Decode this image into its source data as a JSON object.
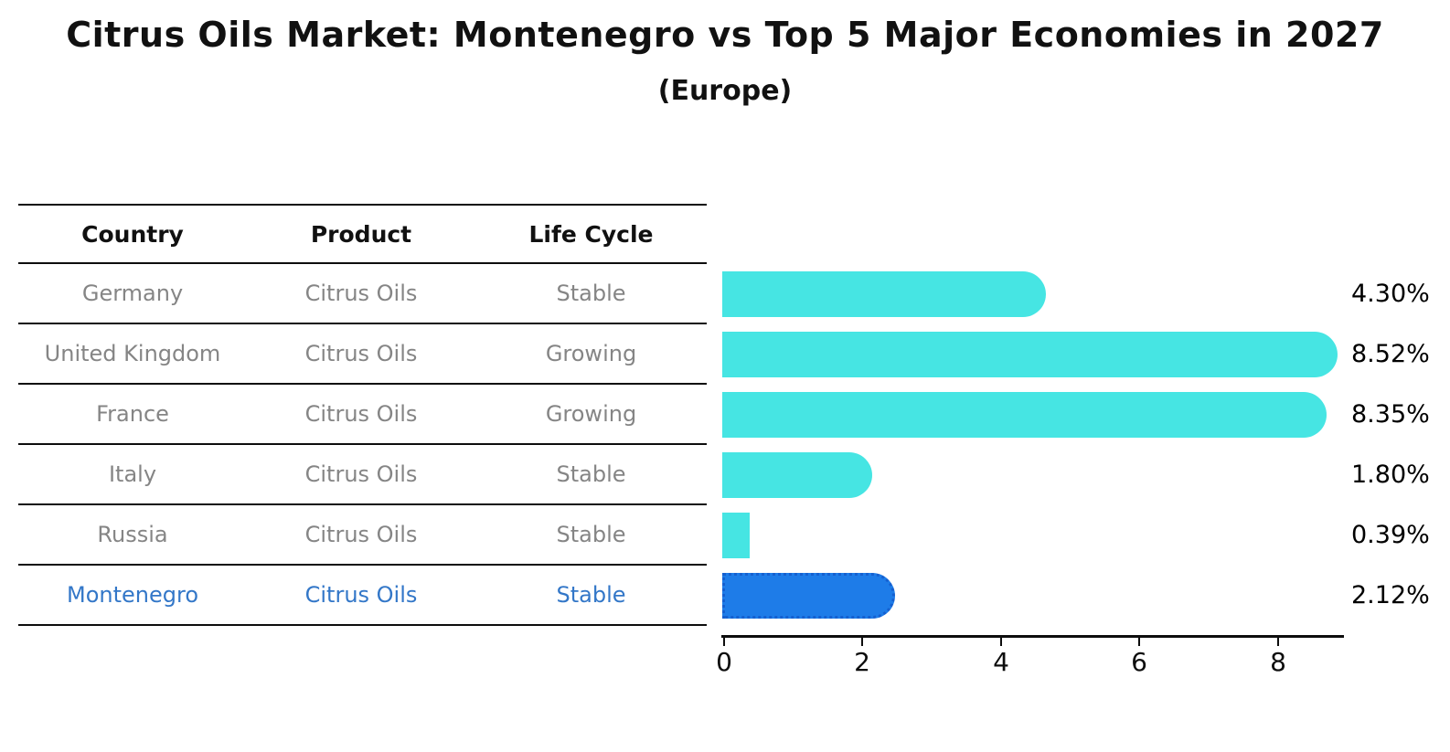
{
  "title": "Citrus Oils Market: Montenegro vs Top 5 Major Economies in 2027",
  "subtitle": "(Europe)",
  "table": {
    "headers": {
      "country": "Country",
      "product": "Product",
      "life_cycle": "Life Cycle"
    },
    "rows": [
      {
        "country": "Germany",
        "product": "Citrus Oils",
        "life_cycle": "Stable"
      },
      {
        "country": "United Kingdom",
        "product": "Citrus Oils",
        "life_cycle": "Growing"
      },
      {
        "country": "France",
        "product": "Citrus Oils",
        "life_cycle": "Growing"
      },
      {
        "country": "Italy",
        "product": "Citrus Oils",
        "life_cycle": "Stable"
      },
      {
        "country": "Russia",
        "product": "Citrus Oils",
        "life_cycle": "Stable"
      },
      {
        "country": "Montenegro",
        "product": "Citrus Oils",
        "life_cycle": "Stable"
      }
    ]
  },
  "chart_data": {
    "type": "bar",
    "orientation": "horizontal",
    "title": "Citrus Oils Market: Montenegro vs Top 5 Major Economies in 2027",
    "subtitle": "(Europe)",
    "categories": [
      "Germany",
      "United Kingdom",
      "France",
      "Italy",
      "Russia",
      "Montenegro"
    ],
    "values": [
      4.3,
      8.52,
      8.35,
      1.8,
      0.39,
      2.12
    ],
    "value_labels": [
      "4.30%",
      "8.52%",
      "8.35%",
      "1.80%",
      "0.39%",
      "2.12%"
    ],
    "x_ticks": [
      0,
      2,
      4,
      6,
      8
    ],
    "xlim": [
      0,
      9
    ],
    "grid": "off",
    "legend": "none",
    "highlight_category": "Montenegro"
  },
  "colors": {
    "bar_default": "#46E5E3",
    "bar_highlight": "#1E7CE8",
    "bar_highlight_border": "#1560D0",
    "highlight_text": "#3377C8",
    "table_text": "#858585",
    "axis_color": "#0d0d0d"
  }
}
